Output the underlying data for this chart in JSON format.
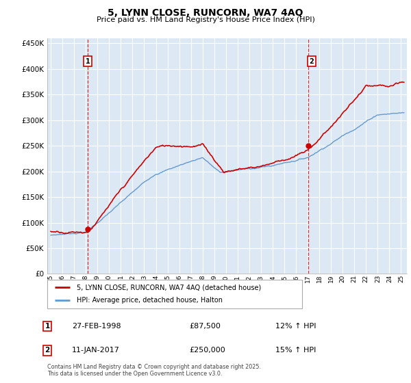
{
  "title": "5, LYNN CLOSE, RUNCORN, WA7 4AQ",
  "subtitle": "Price paid vs. HM Land Registry's House Price Index (HPI)",
  "property_label": "5, LYNN CLOSE, RUNCORN, WA7 4AQ (detached house)",
  "hpi_label": "HPI: Average price, detached house, Halton",
  "sale1_date": "27-FEB-1998",
  "sale1_price": 87500,
  "sale1_label": "£87,500",
  "sale1_hpi_text": "12% ↑ HPI",
  "sale2_date": "11-JAN-2017",
  "sale2_price": 250000,
  "sale2_label": "£250,000",
  "sale2_hpi_text": "15% ↑ HPI",
  "footnote_line1": "Contains HM Land Registry data © Crown copyright and database right 2025.",
  "footnote_line2": "This data is licensed under the Open Government Licence v3.0.",
  "property_color": "#cc0000",
  "hpi_color": "#6699cc",
  "chart_bg": "#dce9f5",
  "background_color": "#ffffff",
  "ylim": [
    0,
    460000
  ],
  "yticks": [
    0,
    50000,
    100000,
    150000,
    200000,
    250000,
    300000,
    350000,
    400000,
    450000
  ],
  "xlim_start": 1994.7,
  "xlim_end": 2025.5,
  "sale1_year": 1998.16,
  "sale2_year": 2017.03,
  "figwidth": 6.0,
  "figheight": 5.6
}
